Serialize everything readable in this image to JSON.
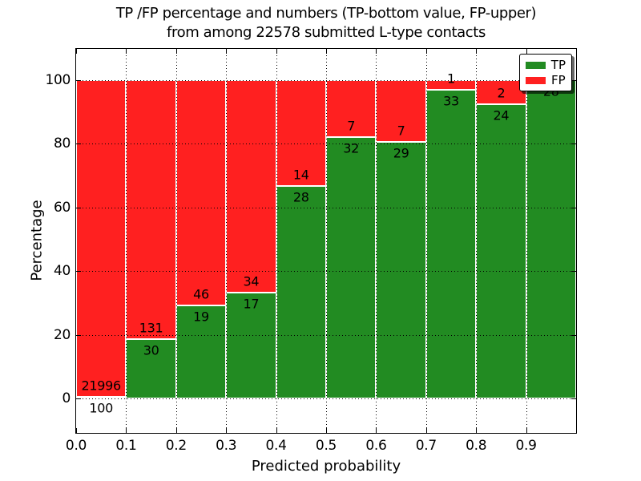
{
  "chart_data": {
    "type": "bar",
    "stacked": true,
    "normalized": "percent",
    "title": "TP /FP percentage and numbers (TP-bottom value, FP-upper)\nfrom among 22578 submitted L-type contacts",
    "title_lines": [
      "TP /FP percentage and numbers (TP-bottom value, FP-upper)",
      "from among 22578 submitted L-type contacts"
    ],
    "total_submitted_contacts": 22578,
    "xlabel": "Predicted probability",
    "ylabel": "Percentage",
    "x_tick_labels": [
      "0.0",
      "0.1",
      "0.2",
      "0.3",
      "0.4",
      "0.5",
      "0.6",
      "0.7",
      "0.8",
      "0.9"
    ],
    "y_tick_labels": [
      "0",
      "20",
      "40",
      "60",
      "80",
      "100"
    ],
    "y_tick_values": [
      0,
      20,
      40,
      60,
      80,
      100
    ],
    "xlim": [
      0.0,
      1.0
    ],
    "ylim_percent": [
      -10.8,
      109.8
    ],
    "grid": "dotted",
    "legend": {
      "position": "upper right",
      "items": [
        {
          "label": "TP",
          "color": "#228B22"
        },
        {
          "label": "FP",
          "color": "#ff2020"
        }
      ]
    },
    "bars": [
      {
        "bin_start": 0.0,
        "bin_end": 0.1,
        "tp": 100,
        "fp": 21996
      },
      {
        "bin_start": 0.1,
        "bin_end": 0.2,
        "tp": 30,
        "fp": 131
      },
      {
        "bin_start": 0.2,
        "bin_end": 0.3,
        "tp": 19,
        "fp": 46
      },
      {
        "bin_start": 0.3,
        "bin_end": 0.4,
        "tp": 17,
        "fp": 34
      },
      {
        "bin_start": 0.4,
        "bin_end": 0.5,
        "tp": 28,
        "fp": 14
      },
      {
        "bin_start": 0.5,
        "bin_end": 0.6,
        "tp": 32,
        "fp": 7
      },
      {
        "bin_start": 0.6,
        "bin_end": 0.7,
        "tp": 29,
        "fp": 7
      },
      {
        "bin_start": 0.7,
        "bin_end": 0.8,
        "tp": 33,
        "fp": 1
      },
      {
        "bin_start": 0.8,
        "bin_end": 0.9,
        "tp": 24,
        "fp": 2
      },
      {
        "bin_start": 0.9,
        "bin_end": 1.0,
        "tp": 28,
        "fp": 0
      }
    ]
  },
  "colors": {
    "tp": "#228B22",
    "fp": "#ff2020",
    "bar_edge": "#ffffff",
    "grid": "#000000",
    "text": "#000000",
    "background": "#ffffff"
  }
}
